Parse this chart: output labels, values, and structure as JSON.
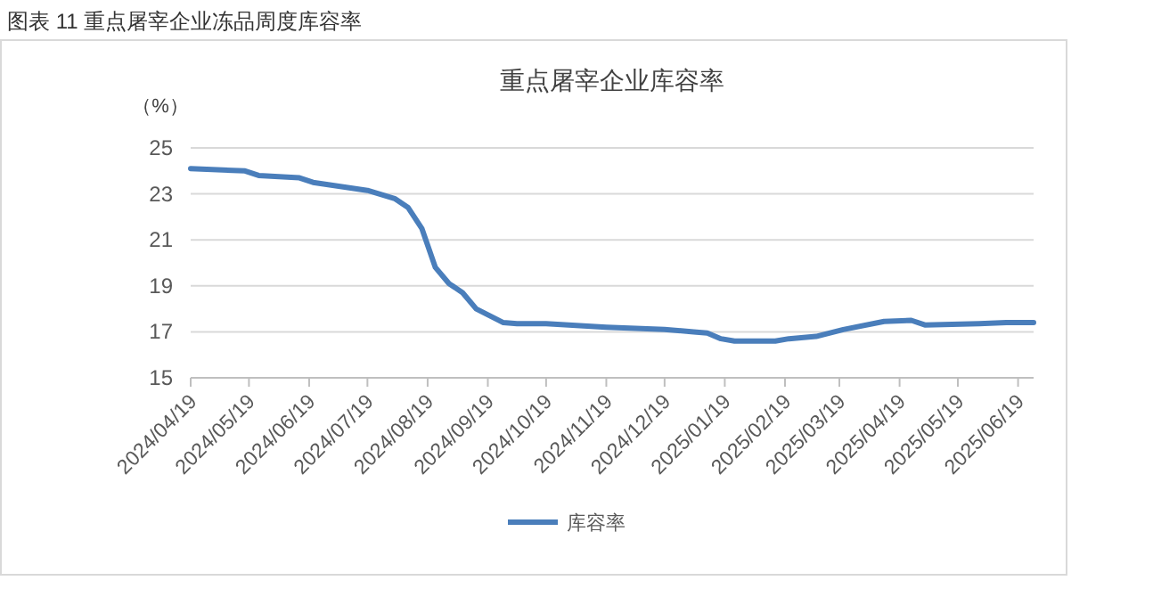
{
  "chart_data": {
    "type": "line",
    "title": "重点屠宰企业库容率",
    "subtitle": "图表 11  重点屠宰企业冻品周度库容率",
    "ylabel": "（%）",
    "x": [
      "2024-04-19",
      "2024-05-17",
      "2024-05-24",
      "2024-06-14",
      "2024-06-21",
      "2024-07-19",
      "2024-08-02",
      "2024-08-09",
      "2024-08-16",
      "2024-08-23",
      "2024-08-30",
      "2024-09-06",
      "2024-09-13",
      "2024-09-20",
      "2024-09-27",
      "2024-10-04",
      "2024-10-19",
      "2024-11-19",
      "2024-12-19",
      "2025-01-03",
      "2025-01-10",
      "2025-01-17",
      "2025-01-24",
      "2025-02-14",
      "2025-02-21",
      "2025-03-07",
      "2025-03-21",
      "2025-04-11",
      "2025-04-25",
      "2025-05-02",
      "2025-05-30",
      "2025-06-13",
      "2025-06-27"
    ],
    "series": [
      {
        "name": "库容率",
        "color": "#4a7ebb",
        "values": [
          24.1,
          24.0,
          23.8,
          23.7,
          23.5,
          23.15,
          22.8,
          22.4,
          21.5,
          19.8,
          19.1,
          18.7,
          18.0,
          17.7,
          17.4,
          17.35,
          17.35,
          17.2,
          17.1,
          17.0,
          16.95,
          16.7,
          16.6,
          16.6,
          16.7,
          16.8,
          17.1,
          17.45,
          17.5,
          17.3,
          17.35,
          17.4,
          17.4
        ]
      }
    ],
    "xlim": [
      "2024-04-19",
      "2025-06-27"
    ],
    "xticks": [
      {
        "value": "2024-04-19",
        "label": "2024/04/19"
      },
      {
        "value": "2024-05-19",
        "label": "2024/05/19"
      },
      {
        "value": "2024-06-19",
        "label": "2024/06/19"
      },
      {
        "value": "2024-07-19",
        "label": "2024/07/19"
      },
      {
        "value": "2024-08-19",
        "label": "2024/08/19"
      },
      {
        "value": "2024-09-19",
        "label": "2024/09/19"
      },
      {
        "value": "2024-10-19",
        "label": "2024/10/19"
      },
      {
        "value": "2024-11-19",
        "label": "2024/11/19"
      },
      {
        "value": "2024-12-19",
        "label": "2024/12/19"
      },
      {
        "value": "2025-01-19",
        "label": "2025/01/19"
      },
      {
        "value": "2025-02-19",
        "label": "2025/02/19"
      },
      {
        "value": "2025-03-19",
        "label": "2025/03/19"
      },
      {
        "value": "2025-04-19",
        "label": "2025/04/19"
      },
      {
        "value": "2025-05-19",
        "label": "2025/05/19"
      },
      {
        "value": "2025-06-19",
        "label": "2025/06/19"
      }
    ],
    "ylim": [
      15,
      25
    ],
    "yticks": [
      15,
      17,
      19,
      21,
      23,
      25
    ],
    "grid": "y",
    "legend": "bottom",
    "marker": "none",
    "line_style": "solid"
  }
}
